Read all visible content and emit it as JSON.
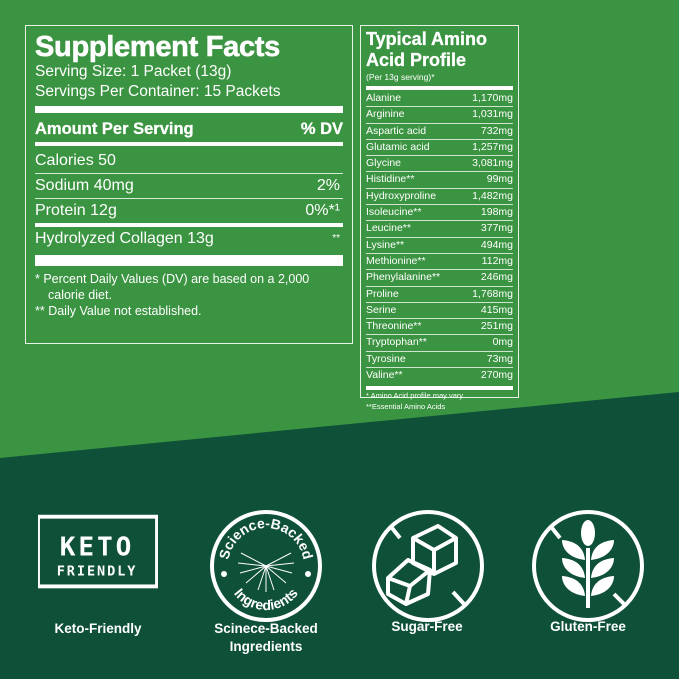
{
  "colors": {
    "background_top": "#3b9441",
    "background_bottom": "#0e5038",
    "text": "#ffffff"
  },
  "supplement_facts": {
    "title": "Supplement Facts",
    "serving_size": "Serving Size: 1 Packet (13g)",
    "servings_per_container": "Servings Per Container: 15 Packets",
    "header_left": "Amount Per Serving",
    "header_right": "% DV",
    "rows": [
      {
        "label": "Calories 50",
        "dv": ""
      },
      {
        "label": "Sodium 40mg",
        "dv": "2%"
      },
      {
        "label": "Protein 12g",
        "dv": "0%*¹"
      },
      {
        "label": "Hydrolyzed Collagen 13g",
        "dv": "**"
      }
    ],
    "footnote_1": "*  Percent Daily Values (DV) are based on a 2,000",
    "footnote_1b": "calorie diet.",
    "footnote_2": "** Daily Value not established."
  },
  "amino_profile": {
    "title_1": "Typical Amino",
    "title_2": "Acid Profile",
    "subtitle": "(Per 13g serving)*",
    "rows": [
      {
        "name": "Alanine",
        "value": "1,170mg"
      },
      {
        "name": "Arginine",
        "value": "1,031mg"
      },
      {
        "name": "Aspartic acid",
        "value": "732mg"
      },
      {
        "name": "Glutamic acid",
        "value": "1,257mg"
      },
      {
        "name": "Glycine",
        "value": "3,081mg"
      },
      {
        "name": "Histidine**",
        "value": "99mg"
      },
      {
        "name": "Hydroxyproline",
        "value": "1,482mg"
      },
      {
        "name": "Isoleucine**",
        "value": "198mg"
      },
      {
        "name": "Leucine**",
        "value": "377mg"
      },
      {
        "name": "Lysine**",
        "value": "494mg"
      },
      {
        "name": "Methionine**",
        "value": "112mg"
      },
      {
        "name": "Phenylalanine**",
        "value": "246mg"
      },
      {
        "name": "Proline",
        "value": "1,768mg"
      },
      {
        "name": "Serine",
        "value": "415mg"
      },
      {
        "name": "Threonine**",
        "value": "251mg"
      },
      {
        "name": "Tryptophan**",
        "value": "0mg"
      },
      {
        "name": "Tyrosine",
        "value": "73mg"
      },
      {
        "name": "Valine**",
        "value": "270mg"
      }
    ],
    "footnote_1": "* Amino Acid profile may vary",
    "footnote_2": "**Essential Amino Acids"
  },
  "badges": [
    {
      "icon": "keto-friendly-badge",
      "logo_text": "KETO FRIENDLY",
      "label": "Keto-Friendly"
    },
    {
      "icon": "science-backed-seal",
      "logo_text": "Science-Backed • Ingredients •",
      "label": "Scinece-Backed",
      "label_2": "Ingredients"
    },
    {
      "icon": "no-sugar-cubes-icon",
      "label": "Sugar-Free"
    },
    {
      "icon": "no-wheat-icon",
      "label": "Gluten-Free"
    }
  ]
}
